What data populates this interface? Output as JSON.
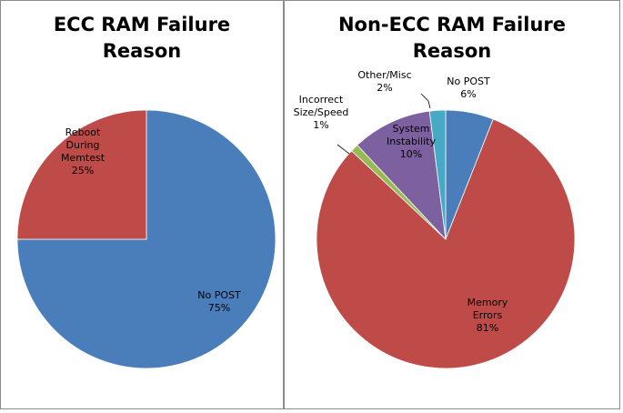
{
  "chart_data": [
    {
      "type": "pie",
      "title": "ECC RAM Failure\nReason",
      "slices": [
        {
          "label": [
            "No POST",
            "75%"
          ],
          "value": 75,
          "color": "#4a7ebb"
        },
        {
          "label": [
            "Reboot",
            "During",
            "Memtest",
            "25%"
          ],
          "value": 25,
          "color": "#be4b48"
        }
      ]
    },
    {
      "type": "pie",
      "title": "Non-ECC RAM Failure\nReason",
      "slices": [
        {
          "label": [
            "No POST",
            "6%"
          ],
          "value": 6,
          "color": "#4a7ebb"
        },
        {
          "label": [
            "Memory",
            "Errors",
            "81%"
          ],
          "value": 81,
          "color": "#be4b48"
        },
        {
          "label": [
            "Incorrect",
            "Size/Speed",
            "1%"
          ],
          "value": 1,
          "color": "#98b954"
        },
        {
          "label": [
            "System",
            "Instability",
            "10%"
          ],
          "value": 10,
          "color": "#7d60a0"
        },
        {
          "label": [
            "Other/Misc",
            "2%"
          ],
          "value": 2,
          "color": "#46aac5"
        }
      ]
    }
  ]
}
